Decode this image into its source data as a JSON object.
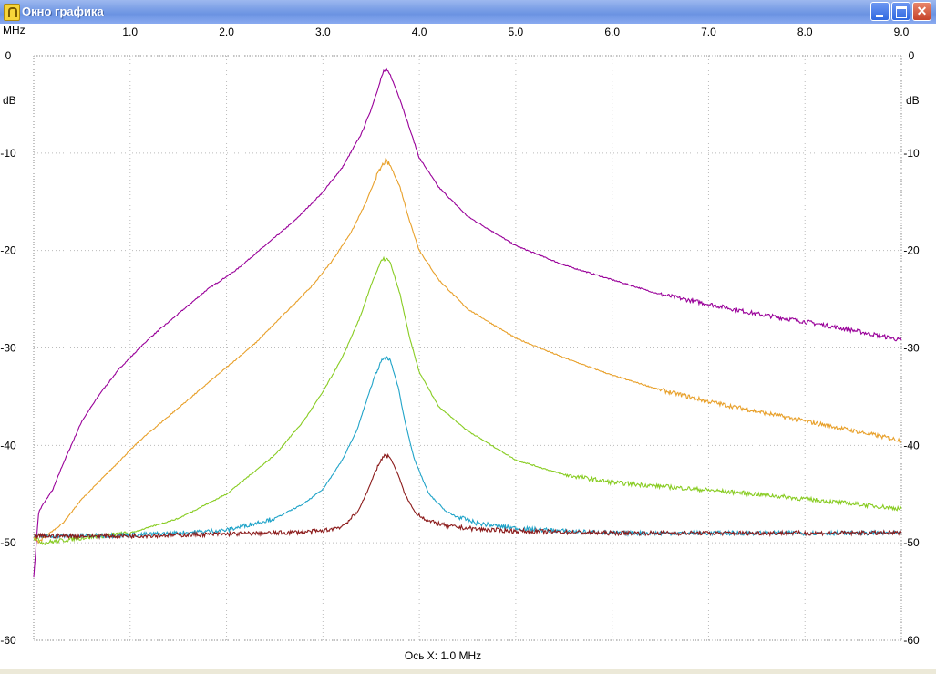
{
  "window": {
    "title": "Окно графика",
    "controls": {
      "minimize": "minimize",
      "maximize": "maximize",
      "close": "close"
    }
  },
  "chart_data": {
    "type": "line",
    "x_unit_label": "MHz",
    "y_unit_label": "dB",
    "xlim": [
      0.0,
      9.0
    ],
    "ylim": [
      -60,
      0
    ],
    "x_ticks": [
      {
        "value": 1.0,
        "label": "1.0"
      },
      {
        "value": 2.0,
        "label": "2.0"
      },
      {
        "value": 3.0,
        "label": "3.0"
      },
      {
        "value": 4.0,
        "label": "4.0"
      },
      {
        "value": 5.0,
        "label": "5.0"
      },
      {
        "value": 6.0,
        "label": "6.0"
      },
      {
        "value": 7.0,
        "label": "7.0"
      },
      {
        "value": 8.0,
        "label": "8.0"
      },
      {
        "value": 9.0,
        "label": "9.0"
      }
    ],
    "y_ticks": [
      {
        "value": 0,
        "label": "0"
      },
      {
        "value": -10,
        "label": "-10"
      },
      {
        "value": -20,
        "label": "-20"
      },
      {
        "value": -30,
        "label": "-30"
      },
      {
        "value": -40,
        "label": "-40"
      },
      {
        "value": -50,
        "label": "-50"
      },
      {
        "value": -60,
        "label": "-60"
      }
    ],
    "grid": true,
    "xlabel": "Ось X: 1.0 MHz",
    "series": [
      {
        "color": "#990099",
        "x": [
          0.0,
          0.05,
          0.1,
          0.2,
          0.3,
          0.5,
          0.7,
          0.9,
          1.2,
          1.5,
          1.8,
          2.1,
          2.4,
          2.7,
          3.0,
          3.2,
          3.4,
          3.5,
          3.6,
          3.63,
          3.65,
          3.7,
          3.8,
          3.9,
          4.0,
          4.2,
          4.5,
          5.0,
          5.5,
          6.0,
          6.5,
          7.0,
          7.5,
          8.0,
          8.5,
          9.0
        ],
        "y": [
          -53.5,
          -47.0,
          -46.0,
          -44.5,
          -42.0,
          -37.5,
          -34.5,
          -32.0,
          -29.0,
          -26.5,
          -24.0,
          -22.0,
          -19.5,
          -17.0,
          -14.0,
          -11.5,
          -8.0,
          -5.5,
          -2.5,
          -1.6,
          -1.5,
          -2.0,
          -4.5,
          -7.5,
          -10.5,
          -13.5,
          -16.5,
          -19.5,
          -21.5,
          -23.0,
          -24.5,
          -25.5,
          -26.5,
          -27.3,
          -28.2,
          -29.2
        ]
      },
      {
        "color": "#e8a02a",
        "x": [
          0.0,
          0.05,
          0.1,
          0.3,
          0.5,
          0.8,
          1.1,
          1.4,
          1.7,
          2.0,
          2.3,
          2.6,
          2.9,
          3.1,
          3.3,
          3.45,
          3.55,
          3.62,
          3.65,
          3.7,
          3.8,
          3.9,
          4.0,
          4.2,
          4.5,
          5.0,
          5.5,
          6.0,
          6.5,
          7.0,
          7.5,
          8.0,
          8.5,
          9.0
        ],
        "y": [
          -49.5,
          -50.0,
          -49.5,
          -48.0,
          -45.5,
          -42.5,
          -39.5,
          -37.0,
          -34.5,
          -32.0,
          -29.5,
          -26.5,
          -23.5,
          -21.0,
          -18.0,
          -15.0,
          -12.5,
          -11.2,
          -10.8,
          -11.3,
          -13.5,
          -17.0,
          -20.0,
          -23.0,
          -26.0,
          -29.0,
          -31.0,
          -32.8,
          -34.3,
          -35.5,
          -36.5,
          -37.5,
          -38.5,
          -39.5
        ]
      },
      {
        "color": "#88cc22",
        "x": [
          0.0,
          0.1,
          0.5,
          1.0,
          1.5,
          2.0,
          2.5,
          2.8,
          3.0,
          3.2,
          3.4,
          3.5,
          3.6,
          3.65,
          3.7,
          3.8,
          3.9,
          4.0,
          4.2,
          4.5,
          5.0,
          5.5,
          6.0,
          6.5,
          7.0,
          7.5,
          8.0,
          8.5,
          9.0
        ],
        "y": [
          -49.5,
          -50.0,
          -49.5,
          -49.0,
          -47.5,
          -45.0,
          -41.0,
          -37.5,
          -34.5,
          -31.0,
          -26.5,
          -23.5,
          -21.2,
          -20.8,
          -21.3,
          -24.5,
          -29.0,
          -32.5,
          -36.0,
          -38.5,
          -41.5,
          -43.0,
          -43.8,
          -44.2,
          -44.6,
          -45.0,
          -45.5,
          -46.0,
          -46.5
        ]
      },
      {
        "color": "#1fa3c8",
        "x": [
          0.0,
          0.5,
          1.0,
          1.5,
          2.0,
          2.5,
          2.8,
          3.0,
          3.2,
          3.35,
          3.45,
          3.55,
          3.62,
          3.65,
          3.7,
          3.78,
          3.85,
          3.95,
          4.1,
          4.3,
          4.6,
          5.0,
          5.5,
          6.0,
          7.0,
          8.0,
          9.0
        ],
        "y": [
          -49.3,
          -49.3,
          -49.2,
          -49.0,
          -48.7,
          -47.5,
          -46.0,
          -44.5,
          -41.5,
          -38.5,
          -35.5,
          -32.5,
          -31.2,
          -31.0,
          -31.3,
          -34.0,
          -37.5,
          -41.5,
          -45.0,
          -47.0,
          -48.0,
          -48.5,
          -48.8,
          -49.0,
          -49.0,
          -49.0,
          -49.0
        ]
      },
      {
        "color": "#8b1a1a",
        "x": [
          0.0,
          0.5,
          1.0,
          1.5,
          2.0,
          2.5,
          3.0,
          3.2,
          3.35,
          3.45,
          3.55,
          3.62,
          3.65,
          3.7,
          3.78,
          3.85,
          3.95,
          4.1,
          4.3,
          4.6,
          5.0,
          6.0,
          7.0,
          8.0,
          9.0
        ],
        "y": [
          -49.3,
          -49.3,
          -49.3,
          -49.2,
          -49.1,
          -49.0,
          -48.8,
          -48.3,
          -47.0,
          -45.0,
          -42.5,
          -41.2,
          -41.0,
          -41.3,
          -43.0,
          -45.0,
          -46.8,
          -47.8,
          -48.3,
          -48.6,
          -48.8,
          -49.0,
          -49.0,
          -49.0,
          -49.0
        ]
      }
    ]
  }
}
